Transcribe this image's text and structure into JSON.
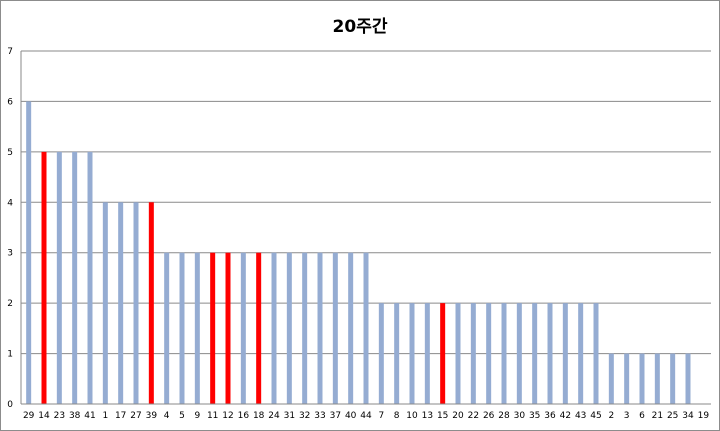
{
  "chart_data": {
    "type": "bar",
    "title": "20주간",
    "xlabel": "",
    "ylabel": "",
    "ylim": [
      0,
      7
    ],
    "yticks": [
      0,
      1,
      2,
      3,
      4,
      5,
      6,
      7
    ],
    "grid": true,
    "legend": "none",
    "categories": [
      "29",
      "14",
      "23",
      "38",
      "41",
      "1",
      "17",
      "27",
      "39",
      "4",
      "5",
      "9",
      "11",
      "12",
      "16",
      "18",
      "24",
      "31",
      "32",
      "33",
      "37",
      "40",
      "44",
      "7",
      "8",
      "10",
      "13",
      "15",
      "20",
      "22",
      "26",
      "28",
      "30",
      "35",
      "36",
      "42",
      "43",
      "45",
      "2",
      "3",
      "6",
      "21",
      "25",
      "34",
      "19"
    ],
    "values": [
      6,
      5,
      5,
      5,
      5,
      4,
      4,
      4,
      4,
      3,
      3,
      3,
      3,
      3,
      3,
      3,
      3,
      3,
      3,
      3,
      3,
      3,
      3,
      2,
      2,
      2,
      2,
      2,
      2,
      2,
      2,
      2,
      2,
      2,
      2,
      2,
      2,
      2,
      1,
      1,
      1,
      1,
      1,
      1,
      0
    ],
    "highlighted": [
      "14",
      "39",
      "11",
      "12",
      "18",
      "15"
    ],
    "colors": {
      "bar": "#95acd2",
      "highlight": "#ff0000",
      "grid": "#8a8a8a"
    }
  }
}
